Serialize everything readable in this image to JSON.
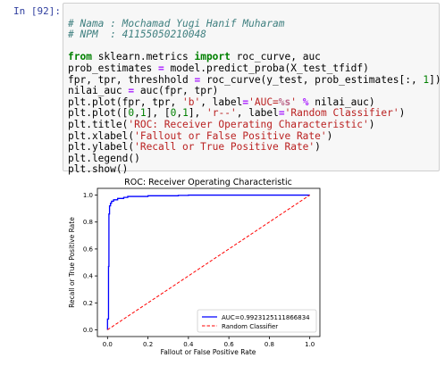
{
  "cell": {
    "prompt": "In [92]:",
    "comment1": "# Nama : Mochamad Yugi Hanif Muharam",
    "comment2": "# NPM  : 41155050210048",
    "lines": {
      "l1": {
        "kw1": "from",
        "t1": " sklearn.metrics ",
        "kw2": "import",
        "t2": " roc_curve, auc"
      },
      "l2": {
        "t1": "prob_estimates ",
        "op": "=",
        "t2": " model.predict_proba(X_test_tfidf)"
      },
      "l3": {
        "t1": "fpr, tpr, threshhold ",
        "op": "=",
        "t2": " roc_curve(y_test, prob_estimates[:, ",
        "n1": "1",
        "t3": "])"
      },
      "l4": {
        "t1": "nilai_auc ",
        "op": "=",
        "t2": " auc(fpr, tpr)"
      },
      "l5": {
        "t1": "plt.plot(fpr, tpr, ",
        "s1": "'b'",
        "t2": ", label",
        "op": "=",
        "s2": "'AUC=",
        "si": "%s",
        "s3": "'",
        "t3": " ",
        "op2": "%",
        "t4": " nilai_auc)"
      },
      "l6": {
        "t1": "plt.plot([",
        "n1": "0",
        "t2": ",",
        "n2": "1",
        "t3": "], [",
        "n3": "0",
        "t4": ",",
        "n4": "1",
        "t5": "], ",
        "s1": "'r--'",
        "t6": ", label",
        "op": "=",
        "s2": "'Random Classifier'",
        "t7": ")"
      },
      "l7": {
        "t1": "plt.title(",
        "s1": "'ROC: Receiver Operating Characteristic'",
        "t2": ")"
      },
      "l8": {
        "t1": "plt.xlabel(",
        "s1": "'Fallout or False Positive Rate'",
        "t2": ")"
      },
      "l9": {
        "t1": "plt.ylabel(",
        "s1": "'Recall or True Positive Rate'",
        "t2": ")"
      },
      "l10": {
        "t1": "plt.legend()"
      },
      "l11": {
        "t1": "plt.show()"
      }
    }
  },
  "chart_data": {
    "type": "line",
    "title": "ROC: Receiver Operating Characteristic",
    "xlabel": "Fallout or False Positive Rate",
    "ylabel": "Recall or True Positive Rate",
    "xlim": [
      -0.05,
      1.05
    ],
    "ylim": [
      -0.05,
      1.05
    ],
    "xticks": [
      "0.0",
      "0.2",
      "0.4",
      "0.6",
      "0.8",
      "1.0"
    ],
    "yticks": [
      "0.0",
      "0.2",
      "0.4",
      "0.6",
      "0.8",
      "1.0"
    ],
    "legend_position": "lower-right",
    "series": [
      {
        "name": "AUC=0.9923125111866834",
        "color": "#0000ff",
        "style": "solid",
        "x": [
          0.0,
          0.0,
          0.005,
          0.005,
          0.007,
          0.007,
          0.01,
          0.01,
          0.015,
          0.015,
          0.02,
          0.02,
          0.03,
          0.03,
          0.05,
          0.05,
          0.08,
          0.08,
          0.1,
          0.1,
          0.2,
          0.2,
          0.35,
          0.35,
          0.4,
          0.4,
          1.0
        ],
        "y": [
          0.0,
          0.08,
          0.08,
          0.47,
          0.47,
          0.86,
          0.86,
          0.92,
          0.92,
          0.94,
          0.94,
          0.955,
          0.955,
          0.965,
          0.965,
          0.975,
          0.975,
          0.983,
          0.983,
          0.99,
          0.99,
          0.995,
          0.995,
          0.998,
          0.998,
          1.0,
          1.0
        ]
      },
      {
        "name": "Random Classifier",
        "color": "#ff0000",
        "style": "dashed",
        "x": [
          0,
          1
        ],
        "y": [
          0,
          1
        ]
      }
    ]
  }
}
